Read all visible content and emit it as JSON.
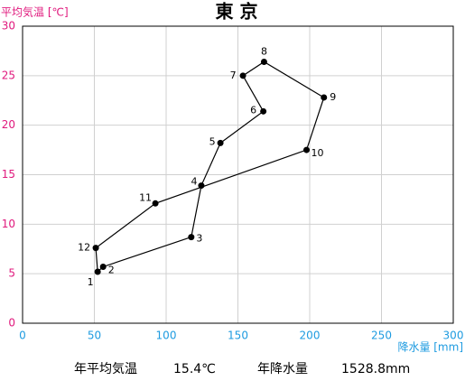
{
  "chart_data": {
    "type": "line",
    "title": "東 京",
    "y_label": "平均気温 [℃]",
    "x_label": "降水量 [mm]",
    "categories": [
      "1",
      "2",
      "3",
      "4",
      "5",
      "6",
      "7",
      "8",
      "9",
      "10",
      "11",
      "12"
    ],
    "x": [
      52.3,
      56.1,
      117.5,
      124.5,
      137.8,
      167.7,
      153.5,
      168.2,
      209.9,
      197.8,
      92.5,
      51.0
    ],
    "values": [
      5.2,
      5.7,
      8.7,
      13.9,
      18.2,
      21.4,
      25.0,
      26.4,
      22.8,
      17.5,
      12.1,
      7.6
    ],
    "color": "#000000",
    "y_color": "#e0197d",
    "x_color": "#1e9be0",
    "xlim": [
      0,
      300
    ],
    "ylim": [
      0,
      30
    ],
    "xticks": [
      0,
      50,
      100,
      150,
      200,
      250,
      300
    ],
    "yticks": [
      0,
      5,
      10,
      15,
      20,
      25,
      30
    ],
    "grid": true,
    "footer": [
      {
        "label": "年平均気温",
        "value": "15.4℃"
      },
      {
        "label": "年降水量",
        "value": "1528.8mm"
      }
    ]
  }
}
